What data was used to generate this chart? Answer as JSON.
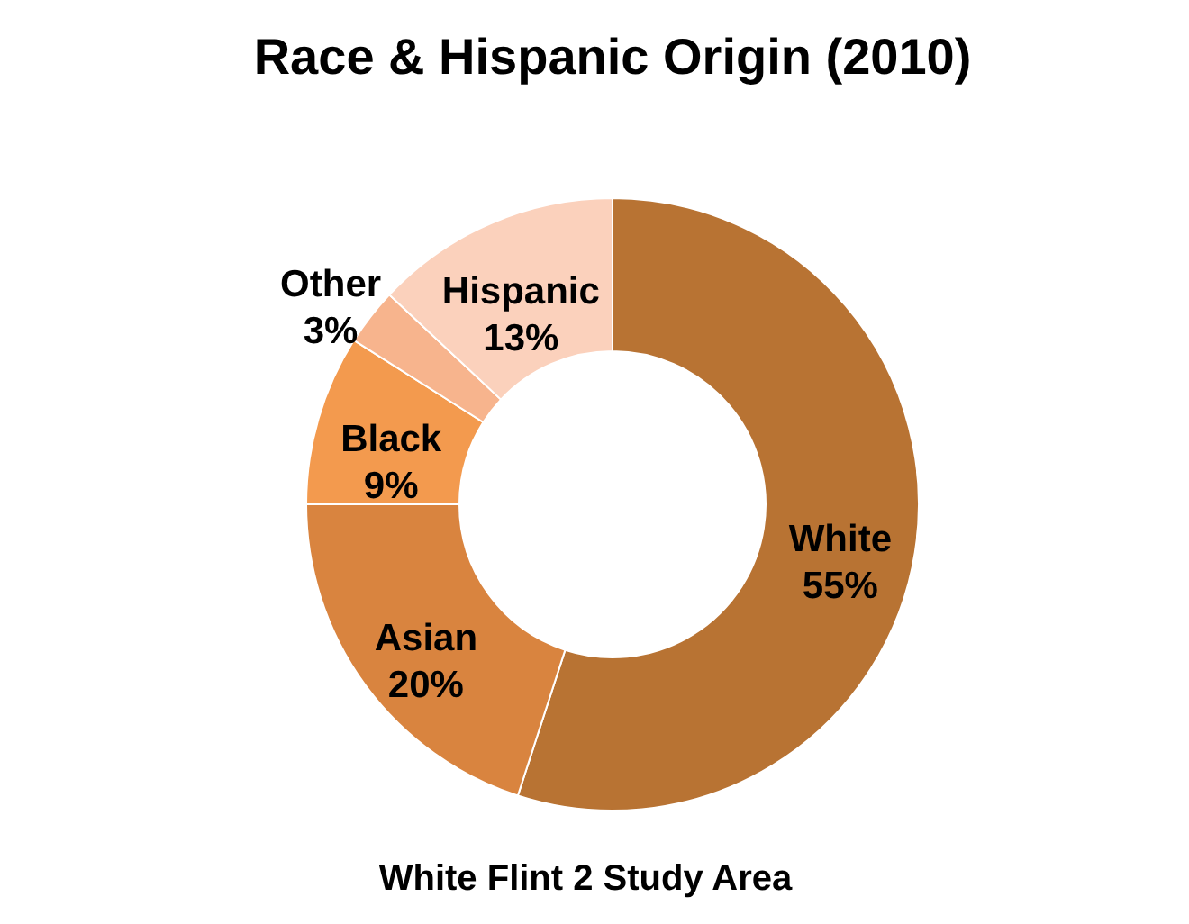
{
  "chart_data": {
    "type": "donut",
    "title": "Race & Hispanic Origin (2010)",
    "categories": [
      "White",
      "Asian",
      "Black",
      "Other",
      "Hispanic"
    ],
    "values": [
      55,
      20,
      9,
      3,
      13
    ],
    "value_labels": [
      "55%",
      "20%",
      "9%",
      "3%",
      "13%"
    ],
    "colors": [
      "#b87333",
      "#d9843f",
      "#f39a4e",
      "#f7b48d",
      "#fbd1bc"
    ],
    "annotations": [
      "White Flint 2 Study Area"
    ]
  }
}
